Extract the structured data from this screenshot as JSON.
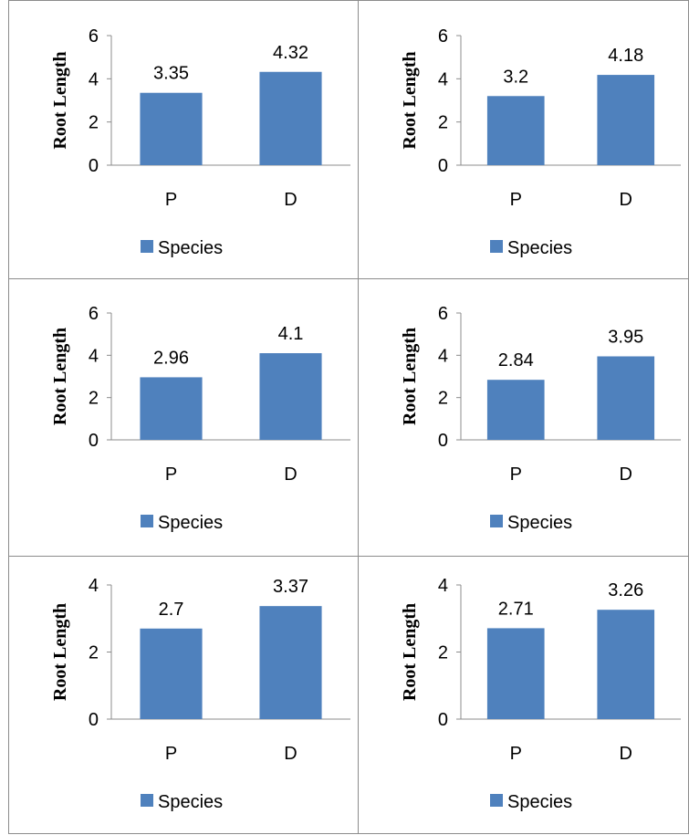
{
  "chart_data": [
    {
      "type": "bar",
      "ylabel": "Root Length",
      "categories": [
        "P",
        "D"
      ],
      "values": [
        3.35,
        4.32
      ],
      "data_labels": [
        "3.35",
        "4.32"
      ],
      "ylim": [
        0,
        6
      ],
      "yticks": [
        "0",
        "2",
        "4",
        "6"
      ],
      "legend": "Species",
      "color": "#4f81bd"
    },
    {
      "type": "bar",
      "ylabel": "Root Length",
      "categories": [
        "P",
        "D"
      ],
      "values": [
        3.2,
        4.18
      ],
      "data_labels": [
        "3.2",
        "4.18"
      ],
      "ylim": [
        0,
        6
      ],
      "yticks": [
        "0",
        "2",
        "4",
        "6"
      ],
      "legend": "Species",
      "color": "#4f81bd"
    },
    {
      "type": "bar",
      "ylabel": "Root Length",
      "categories": [
        "P",
        "D"
      ],
      "values": [
        2.96,
        4.1
      ],
      "data_labels": [
        "2.96",
        "4.1"
      ],
      "ylim": [
        0,
        6
      ],
      "yticks": [
        "0",
        "2",
        "4",
        "6"
      ],
      "legend": "Species",
      "color": "#4f81bd"
    },
    {
      "type": "bar",
      "ylabel": "Root Length",
      "categories": [
        "P",
        "D"
      ],
      "values": [
        2.84,
        3.95
      ],
      "data_labels": [
        "2.84",
        "3.95"
      ],
      "ylim": [
        0,
        6
      ],
      "yticks": [
        "0",
        "2",
        "4",
        "6"
      ],
      "legend": "Species",
      "color": "#4f81bd"
    },
    {
      "type": "bar",
      "ylabel": "Root Length",
      "categories": [
        "P",
        "D"
      ],
      "values": [
        2.7,
        3.37
      ],
      "data_labels": [
        "2.7",
        "3.37"
      ],
      "ylim": [
        0,
        4
      ],
      "yticks": [
        "0",
        "2",
        "4"
      ],
      "legend": "Species",
      "color": "#4f81bd"
    },
    {
      "type": "bar",
      "ylabel": "Root Length",
      "categories": [
        "P",
        "D"
      ],
      "values": [
        2.71,
        3.26
      ],
      "data_labels": [
        "2.71",
        "3.26"
      ],
      "ylim": [
        0,
        4
      ],
      "yticks": [
        "0",
        "2",
        "4"
      ],
      "legend": "Species",
      "color": "#4f81bd"
    }
  ]
}
